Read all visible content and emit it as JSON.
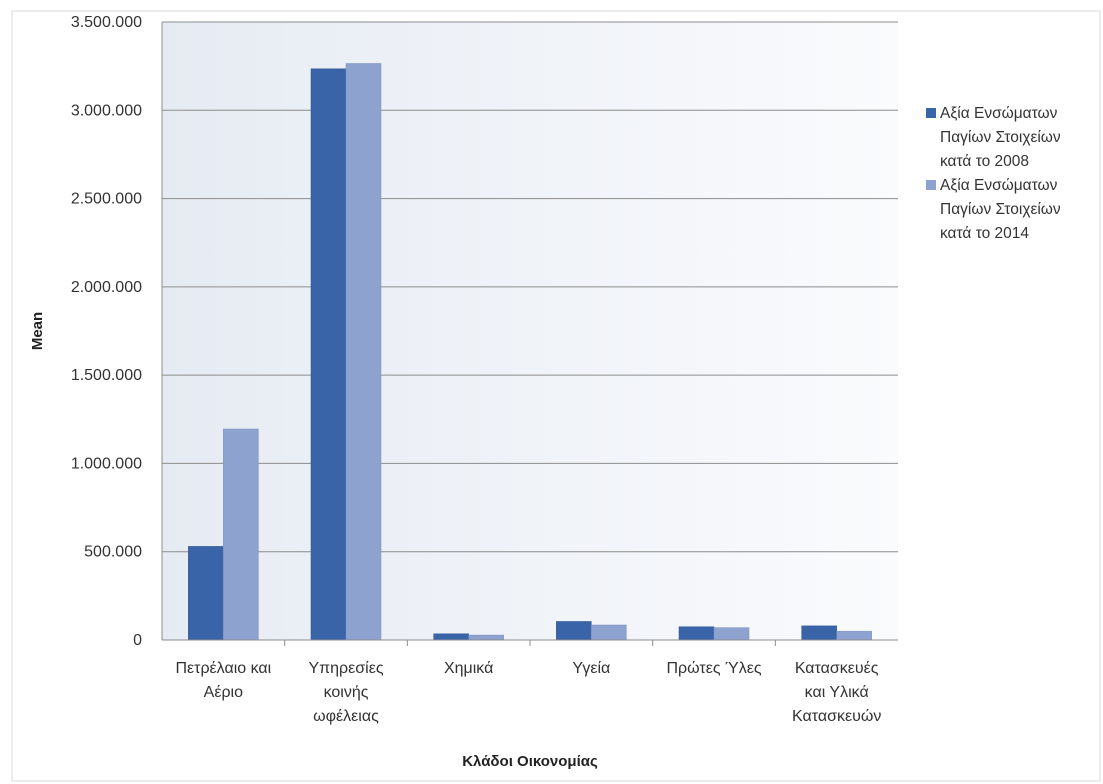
{
  "chart_data": {
    "type": "bar",
    "title": "",
    "xlabel": "Κλάδοι Οικονομίας",
    "ylabel": "Mean",
    "ylim": [
      0,
      3500000
    ],
    "yticks": [
      0,
      500000,
      1000000,
      1500000,
      2000000,
      2500000,
      3000000,
      3500000
    ],
    "ytick_labels": [
      "0",
      "500.000",
      "1.000.000",
      "1.500.000",
      "2.000.000",
      "2.500.000",
      "3.000.000",
      "3.500.000"
    ],
    "grid": true,
    "legend_position": "right",
    "categories": [
      [
        "Πετρέλαιο και",
        "Αέριο"
      ],
      [
        "Υπηρεσίες",
        "κοινής",
        "ωφέλειας"
      ],
      [
        "Χημικά"
      ],
      [
        "Υγεία"
      ],
      [
        "Πρώτες Ύλες"
      ],
      [
        "Κατασκευές",
        "και Υλικά",
        "Κατασκευών"
      ]
    ],
    "series": [
      {
        "name": [
          "Αξία Ενσώματων",
          "Παγίων Στοιχείων",
          "κατά το 2008"
        ],
        "color": "#3a64a8",
        "values": [
          530000,
          3235000,
          35000,
          105000,
          75000,
          80000
        ]
      },
      {
        "name": [
          "Αξία Ενσώματων",
          "Παγίων Στοιχείων",
          "κατά το 2014"
        ],
        "color": "#8ea2cf",
        "values": [
          1195000,
          3265000,
          28000,
          85000,
          70000,
          50000
        ]
      }
    ]
  }
}
